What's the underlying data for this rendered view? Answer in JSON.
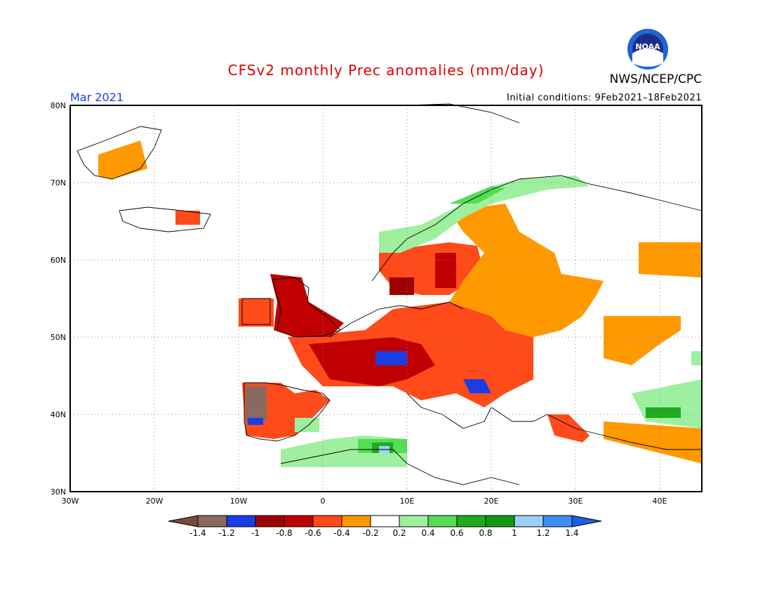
{
  "header": {
    "title": "CFSv2 monthly Prec anomalies (mm/day)",
    "period": "Mar 2021",
    "initial_conditions": "Initial conditions: 9Feb2021–18Feb2021",
    "organization": "NWS/NCEP/CPC",
    "logo_text": "NOAA"
  },
  "map": {
    "lon_range": [
      -30,
      45
    ],
    "lat_range": [
      30,
      80
    ],
    "lon_ticks": [
      "30W",
      "20W",
      "10W",
      "0",
      "10E",
      "20E",
      "30E",
      "40E"
    ],
    "lat_ticks": [
      "30N",
      "40N",
      "50N",
      "60N",
      "70N",
      "80N"
    ]
  },
  "colorbar": {
    "labels": [
      "-1.4",
      "-1.2",
      "-1",
      "-0.8",
      "-0.6",
      "-0.4",
      "-0.2",
      "0.2",
      "0.4",
      "0.6",
      "0.8",
      "1",
      "1.2",
      "1.4"
    ],
    "colors": [
      "#7a4a3a",
      "#8a6a5e",
      "#1a3ee6",
      "#9c0000",
      "#c00000",
      "#ff4a1a",
      "#ff9900",
      "#ffffff",
      "#9ef09e",
      "#55dd55",
      "#1faa1f",
      "#129912",
      "#9bd0f7",
      "#3d8ef0",
      "#1b5fe0"
    ]
  }
}
